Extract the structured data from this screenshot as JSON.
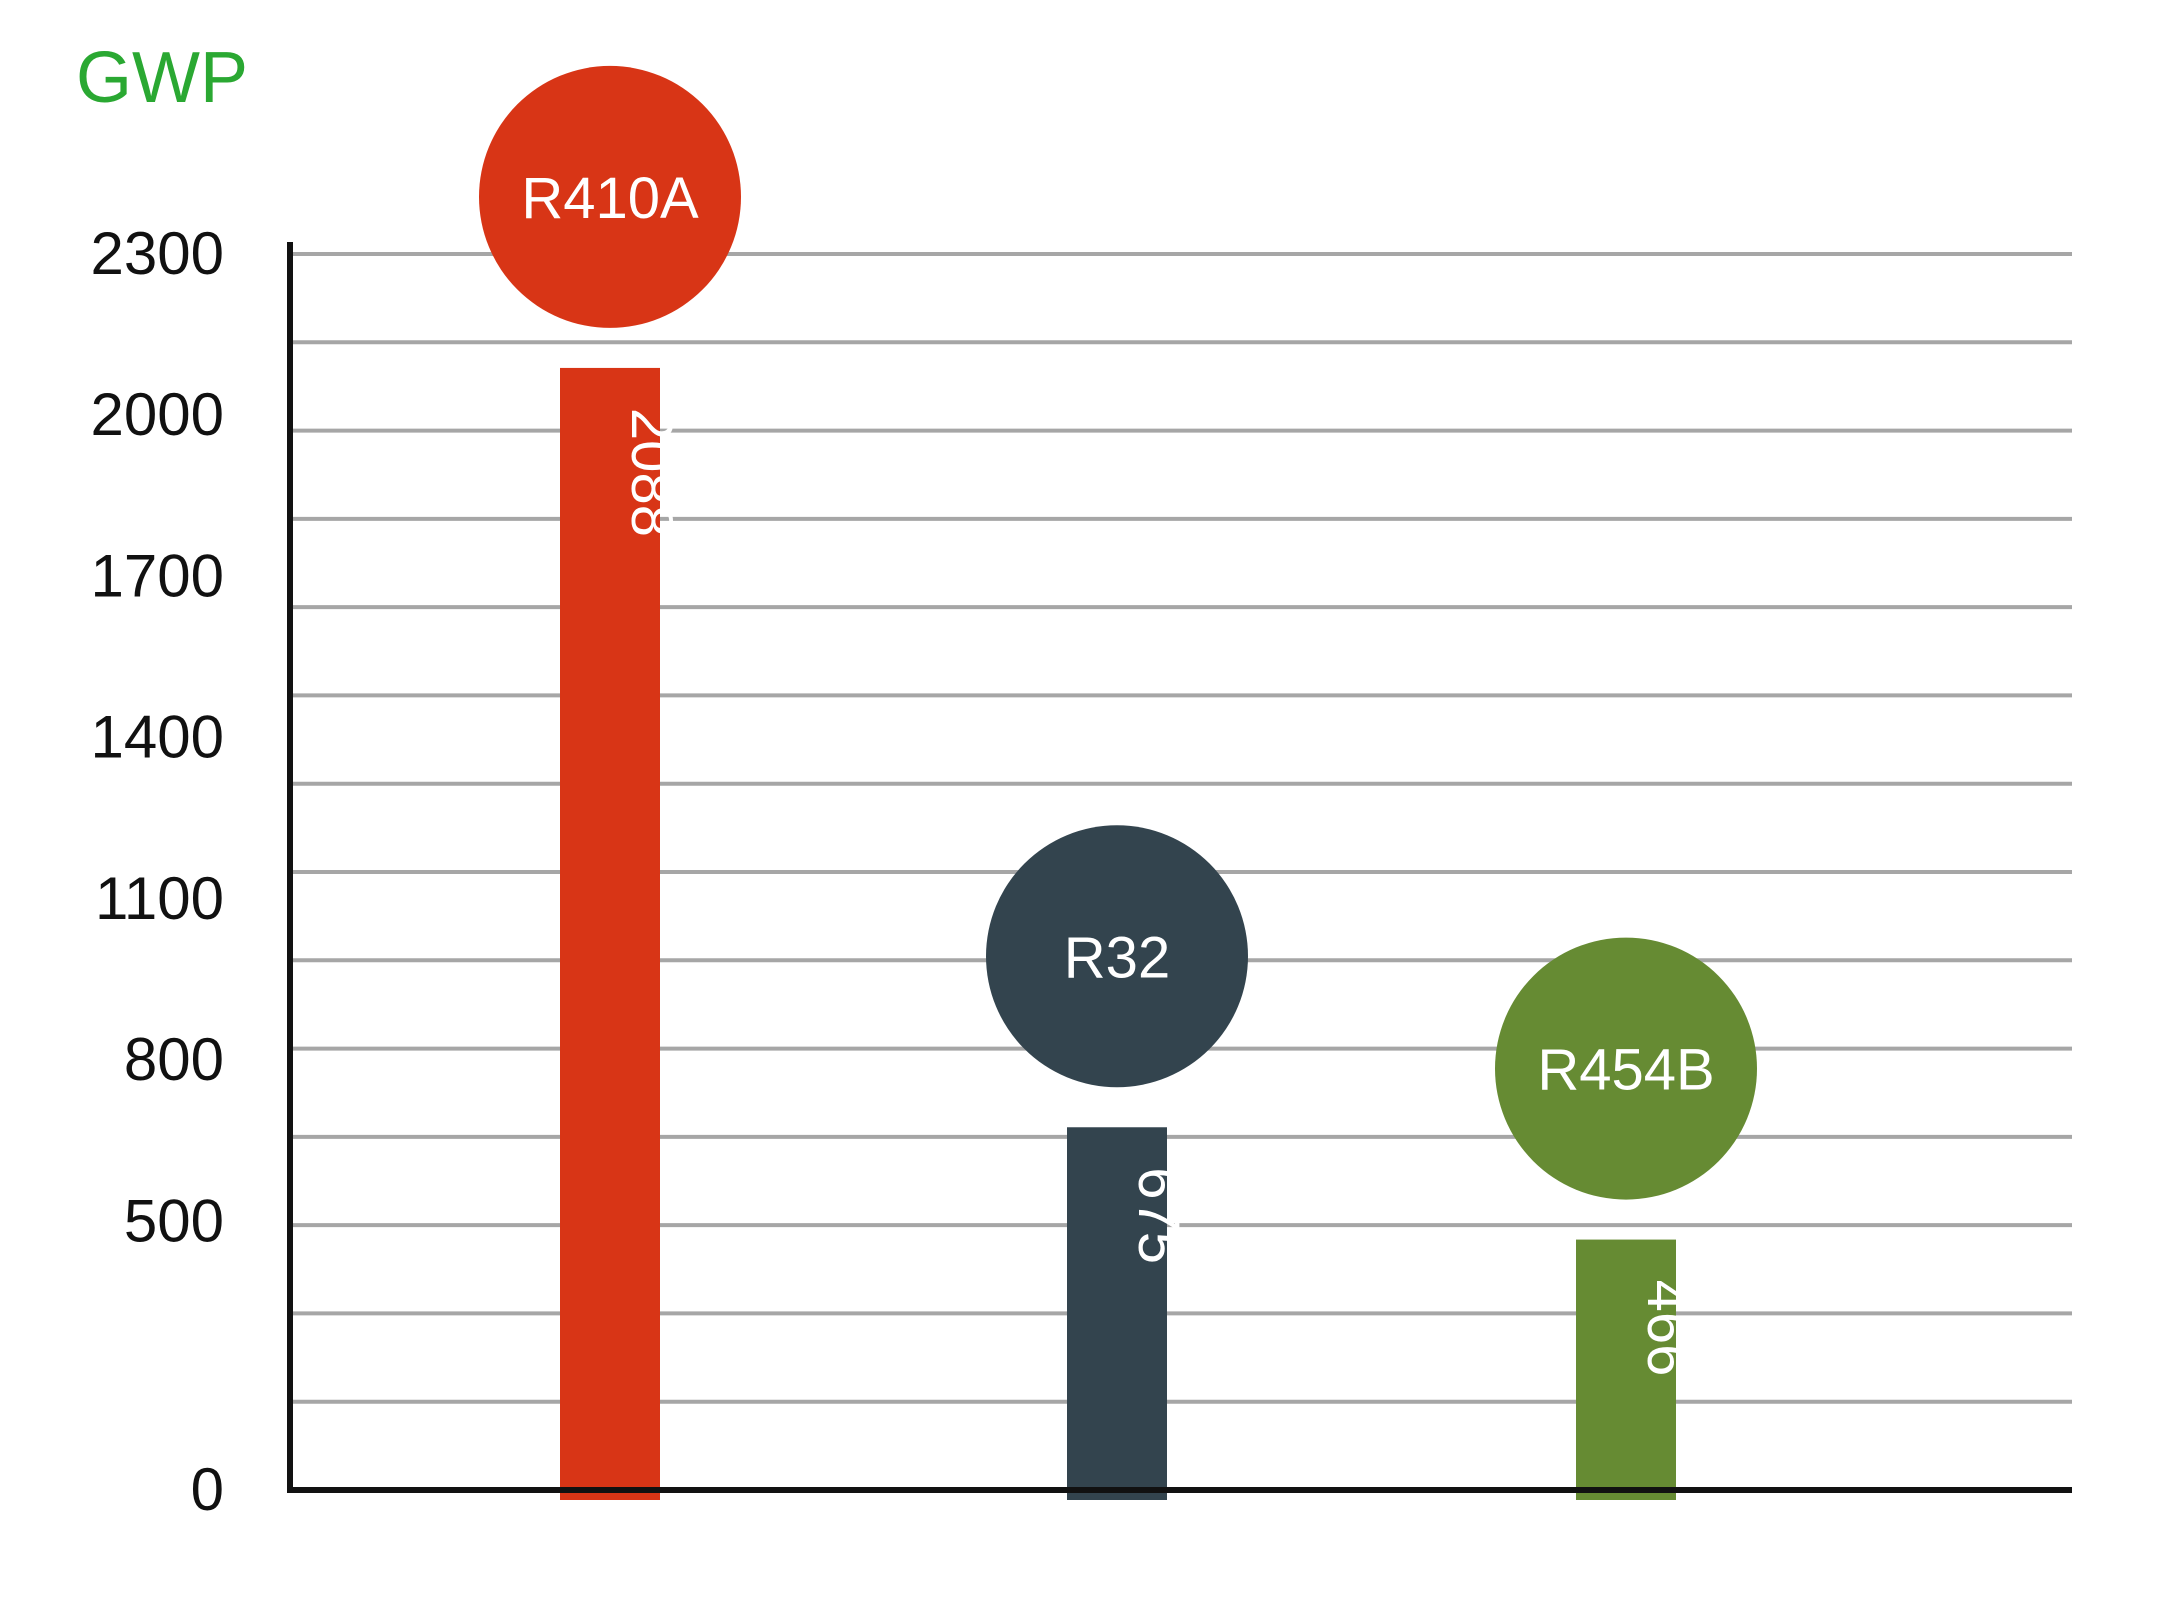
{
  "chart_data": {
    "type": "bar",
    "ylabel": "GWP",
    "ylabel_color": "#2aa832",
    "ylim": [
      0,
      2300
    ],
    "yticks": [
      0,
      500,
      800,
      1100,
      1400,
      1700,
      2000,
      2300
    ],
    "grid": true,
    "categories": [
      "R410A",
      "R32",
      "R454B"
    ],
    "values": [
      2088,
      675,
      466
    ],
    "value_labels": [
      "2088",
      "675",
      "466"
    ],
    "colors": [
      "#d83516",
      "#33444e",
      "#668b33"
    ]
  }
}
